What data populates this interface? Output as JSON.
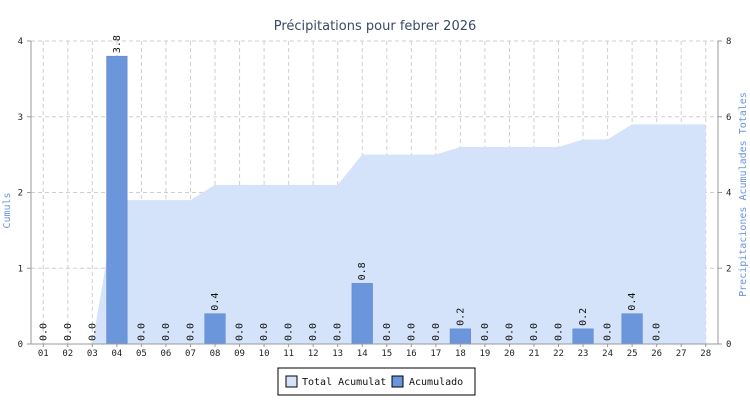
{
  "chart_data": {
    "type": "bar",
    "title": "Précipitations pour febrer 2026",
    "categories": [
      "01",
      "02",
      "03",
      "04",
      "05",
      "06",
      "07",
      "08",
      "09",
      "10",
      "11",
      "12",
      "13",
      "14",
      "15",
      "16",
      "17",
      "18",
      "19",
      "20",
      "21",
      "22",
      "23",
      "24",
      "25",
      "26",
      "27",
      "28"
    ],
    "ylabel_left": "Cumuls",
    "ylabel_right": "Precipitaciones Acumulades Totales",
    "ylim_left": [
      0,
      4
    ],
    "yticks_left": [
      0,
      1,
      2,
      3,
      4
    ],
    "ylim_right": [
      0,
      8
    ],
    "yticks_right": [
      0,
      2,
      4,
      6,
      8
    ],
    "grid": true,
    "legend_position": "bottom-center",
    "series": [
      {
        "name": "Total Acumulat",
        "kind": "area",
        "axis": "right",
        "color": "#d4e2fa",
        "values": [
          0,
          0,
          0,
          3.8,
          3.8,
          3.8,
          3.8,
          4.2,
          4.2,
          4.2,
          4.2,
          4.2,
          4.2,
          5.0,
          5.0,
          5.0,
          5.0,
          5.2,
          5.2,
          5.2,
          5.2,
          5.2,
          5.4,
          5.4,
          5.8,
          5.8,
          5.8,
          5.8
        ]
      },
      {
        "name": "Acumulado",
        "kind": "bar",
        "axis": "left",
        "color": "#6b96dc",
        "values": [
          0,
          0,
          0,
          3.8,
          0,
          0,
          0,
          0.4,
          0,
          0,
          0,
          0,
          0,
          0.8,
          0,
          0,
          0,
          0.2,
          0,
          0,
          0,
          0,
          0.2,
          0,
          0.4,
          0,
          null,
          null
        ],
        "labels": [
          "0.0",
          "0.0",
          "0.0",
          "3.8",
          "0.0",
          "0.0",
          "0.0",
          "0.4",
          "0.0",
          "0.0",
          "0.0",
          "0.0",
          "0.0",
          "0.8",
          "0.0",
          "0.0",
          "0.0",
          "0.2",
          "0.0",
          "0.0",
          "0.0",
          "0.0",
          "0.2",
          "0.0",
          "0.4",
          "0.0",
          "",
          ""
        ]
      }
    ]
  }
}
